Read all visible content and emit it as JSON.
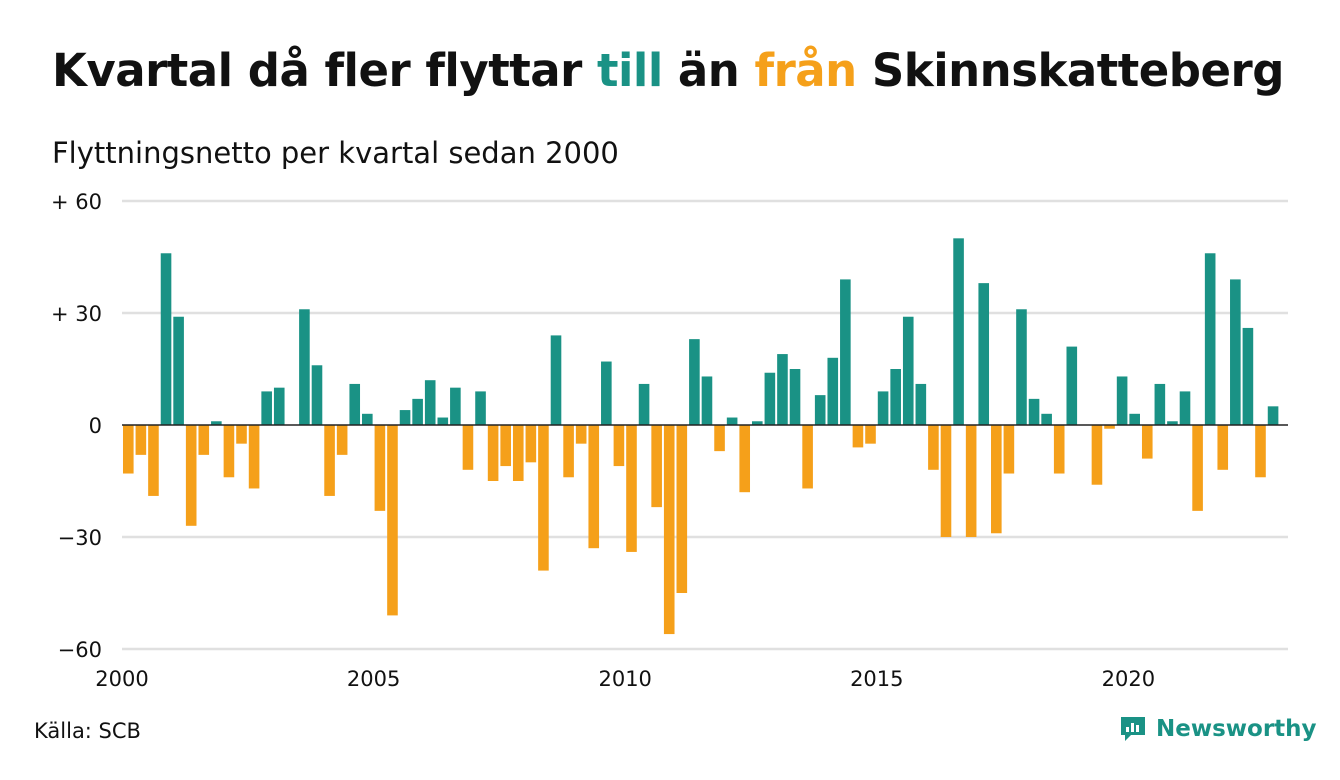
{
  "header": {
    "title_part1": "Kvartal då fler flyttar ",
    "title_till": "till",
    "title_part2": " än ",
    "title_fran": "från",
    "title_part3": " Skinnskatteberg",
    "subtitle": "Flyttningsnetto per kvartal sedan 2000"
  },
  "footer": {
    "source": "Källa: SCB",
    "brand": "Newsworthy",
    "brand_icon": "bar-chart-logo-icon"
  },
  "colors": {
    "positive": "#1a9285",
    "negative": "#f5a01a",
    "grid": "#e0e0e0",
    "zero_line": "#222222"
  },
  "chart_data": {
    "type": "bar",
    "title": "Kvartal då fler flyttar till än från Skinnskatteberg",
    "subtitle": "Flyttningsnetto per kvartal sedan 2000",
    "x_start": "2000-Q1",
    "xticks": [
      "2000",
      "2005",
      "2010",
      "2015",
      "2020"
    ],
    "yticks": [
      {
        "value": 60,
        "label": "+ 60"
      },
      {
        "value": 30,
        "label": "+ 30"
      },
      {
        "value": 0,
        "label": "0"
      },
      {
        "value": -30,
        "label": "−30"
      },
      {
        "value": -60,
        "label": "−60"
      }
    ],
    "ylim": [
      -60,
      60
    ],
    "grid": true,
    "values": [
      -13,
      -8,
      -19,
      46,
      29,
      -27,
      -8,
      1,
      -14,
      -5,
      -17,
      9,
      10,
      0,
      31,
      16,
      -19,
      -8,
      11,
      3,
      -23,
      -51,
      4,
      7,
      12,
      2,
      10,
      -12,
      9,
      -15,
      -11,
      -15,
      -10,
      -39,
      24,
      -14,
      -5,
      -33,
      17,
      -11,
      -34,
      11,
      -22,
      -56,
      -45,
      23,
      13,
      -7,
      2,
      -18,
      1,
      14,
      19,
      15,
      -17,
      8,
      18,
      39,
      -6,
      -5,
      9,
      15,
      29,
      11,
      -12,
      -30,
      50,
      -30,
      38,
      -29,
      -13,
      31,
      7,
      3,
      -13,
      21,
      0,
      -16,
      -1,
      13,
      3,
      -9,
      11,
      1,
      9,
      -23,
      46,
      -12,
      39,
      26,
      -14,
      5
    ]
  }
}
